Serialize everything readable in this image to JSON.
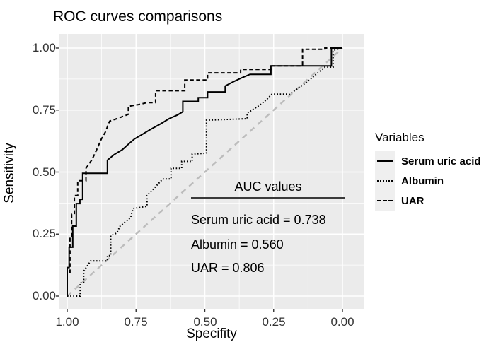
{
  "title": "ROC curves comparisons",
  "axes": {
    "x": {
      "label": "Specifity",
      "ticks": [
        "1.00",
        "0.75",
        "0.50",
        "0.25",
        "0.00"
      ]
    },
    "y": {
      "label": "Sensitivity",
      "ticks": [
        "1.00",
        "0.75",
        "0.50",
        "0.25",
        "0.00"
      ]
    }
  },
  "legend": {
    "title": "Variables",
    "items": [
      {
        "label": "Serum uric acid",
        "line_style": "solid"
      },
      {
        "label": "Albumin",
        "line_style": "dotted"
      },
      {
        "label": "UAR",
        "line_style": "dashed"
      }
    ]
  },
  "annotation": {
    "title": "AUC values",
    "lines": [
      "Serum uric acid = 0.738",
      "Albumin = 0.560",
      "UAR = 0.806"
    ]
  },
  "colors": {
    "panel_bg": "#ebebeb",
    "grid": "#ffffff",
    "curve": "#000000",
    "reference": "#bcbcbc",
    "tick_mark": "#333333",
    "axis_text": "#333333",
    "text": "#000000",
    "legend_key_bg": "#efefef"
  },
  "chart_data": {
    "type": "line",
    "title": "ROC curves comparisons",
    "xlabel": "Specifity",
    "ylabel": "Sensitivity",
    "x_axis": {
      "range": [
        1.0,
        0.0
      ],
      "reversed": true,
      "ticks": [
        1.0,
        0.75,
        0.5,
        0.25,
        0.0
      ]
    },
    "y_axis": {
      "range": [
        0.0,
        1.0
      ],
      "ticks": [
        0.0,
        0.25,
        0.5,
        0.75,
        1.0
      ]
    },
    "grid": true,
    "legend_position": "right",
    "auc": {
      "Serum uric acid": 0.738,
      "Albumin": 0.56,
      "UAR": 0.806
    },
    "series": [
      {
        "name": "Serum uric acid",
        "style": "solid",
        "auc": 0.738,
        "points": [
          [
            1.0,
            0.0
          ],
          [
            1.0,
            0.115
          ],
          [
            0.993,
            0.115
          ],
          [
            0.993,
            0.197
          ],
          [
            0.98,
            0.197
          ],
          [
            0.98,
            0.282
          ],
          [
            0.967,
            0.282
          ],
          [
            0.967,
            0.373
          ],
          [
            0.954,
            0.373
          ],
          [
            0.954,
            0.39
          ],
          [
            0.944,
            0.39
          ],
          [
            0.944,
            0.495
          ],
          [
            0.854,
            0.495
          ],
          [
            0.854,
            0.548
          ],
          [
            0.83,
            0.57
          ],
          [
            0.8,
            0.59
          ],
          [
            0.775,
            0.615
          ],
          [
            0.756,
            0.633
          ],
          [
            0.73,
            0.65
          ],
          [
            0.7,
            0.67
          ],
          [
            0.66,
            0.695
          ],
          [
            0.63,
            0.715
          ],
          [
            0.6,
            0.73
          ],
          [
            0.58,
            0.743
          ],
          [
            0.58,
            0.785
          ],
          [
            0.524,
            0.785
          ],
          [
            0.524,
            0.8
          ],
          [
            0.49,
            0.8
          ],
          [
            0.49,
            0.823
          ],
          [
            0.426,
            0.823
          ],
          [
            0.426,
            0.847
          ],
          [
            0.4,
            0.862
          ],
          [
            0.37,
            0.878
          ],
          [
            0.336,
            0.894
          ],
          [
            0.26,
            0.894
          ],
          [
            0.26,
            0.928
          ],
          [
            0.04,
            0.928
          ],
          [
            0.04,
            1.0
          ],
          [
            0.0,
            1.0
          ]
        ]
      },
      {
        "name": "Albumin",
        "style": "dotted",
        "auc": 0.56,
        "points": [
          [
            1.0,
            0.0
          ],
          [
            0.953,
            0.0
          ],
          [
            0.953,
            0.054
          ],
          [
            0.94,
            0.054
          ],
          [
            0.94,
            0.1
          ],
          [
            0.925,
            0.125
          ],
          [
            0.915,
            0.142
          ],
          [
            0.854,
            0.142
          ],
          [
            0.854,
            0.163
          ],
          [
            0.842,
            0.163
          ],
          [
            0.842,
            0.244
          ],
          [
            0.82,
            0.254
          ],
          [
            0.808,
            0.282
          ],
          [
            0.77,
            0.316
          ],
          [
            0.761,
            0.353
          ],
          [
            0.71,
            0.362
          ],
          [
            0.71,
            0.405
          ],
          [
            0.68,
            0.44
          ],
          [
            0.653,
            0.472
          ],
          [
            0.623,
            0.472
          ],
          [
            0.623,
            0.515
          ],
          [
            0.584,
            0.515
          ],
          [
            0.584,
            0.543
          ],
          [
            0.546,
            0.543
          ],
          [
            0.546,
            0.572
          ],
          [
            0.494,
            0.576
          ],
          [
            0.494,
            0.709
          ],
          [
            0.346,
            0.715
          ],
          [
            0.346,
            0.738
          ],
          [
            0.3,
            0.77
          ],
          [
            0.278,
            0.79
          ],
          [
            0.256,
            0.814
          ],
          [
            0.192,
            0.814
          ],
          [
            0.13,
            0.862
          ],
          [
            0.064,
            0.923
          ],
          [
            0.034,
            0.923
          ],
          [
            0.034,
            0.99
          ],
          [
            0.0,
            1.0
          ]
        ]
      },
      {
        "name": "UAR",
        "style": "dashed",
        "auc": 0.806,
        "points": [
          [
            1.0,
            0.0
          ],
          [
            1.0,
            0.09
          ],
          [
            0.99,
            0.09
          ],
          [
            0.99,
            0.24
          ],
          [
            0.984,
            0.24
          ],
          [
            0.984,
            0.33
          ],
          [
            0.974,
            0.33
          ],
          [
            0.974,
            0.405
          ],
          [
            0.962,
            0.405
          ],
          [
            0.962,
            0.465
          ],
          [
            0.932,
            0.465
          ],
          [
            0.932,
            0.515
          ],
          [
            0.91,
            0.55
          ],
          [
            0.895,
            0.585
          ],
          [
            0.876,
            0.633
          ],
          [
            0.862,
            0.66
          ],
          [
            0.846,
            0.705
          ],
          [
            0.82,
            0.715
          ],
          [
            0.79,
            0.727
          ],
          [
            0.778,
            0.733
          ],
          [
            0.778,
            0.765
          ],
          [
            0.74,
            0.772
          ],
          [
            0.71,
            0.78
          ],
          [
            0.679,
            0.78
          ],
          [
            0.679,
            0.828
          ],
          [
            0.573,
            0.828
          ],
          [
            0.573,
            0.871
          ],
          [
            0.49,
            0.871
          ],
          [
            0.49,
            0.9
          ],
          [
            0.37,
            0.9
          ],
          [
            0.37,
            0.914
          ],
          [
            0.26,
            0.914
          ],
          [
            0.26,
            0.928
          ],
          [
            0.145,
            0.928
          ],
          [
            0.145,
            0.995
          ],
          [
            0.064,
            0.995
          ],
          [
            0.064,
            1.0
          ],
          [
            0.0,
            1.0
          ]
        ]
      },
      {
        "name": "Reference",
        "style": "dashed-gray",
        "points": [
          [
            1.0,
            0.0
          ],
          [
            0.0,
            1.0
          ]
        ]
      }
    ]
  }
}
